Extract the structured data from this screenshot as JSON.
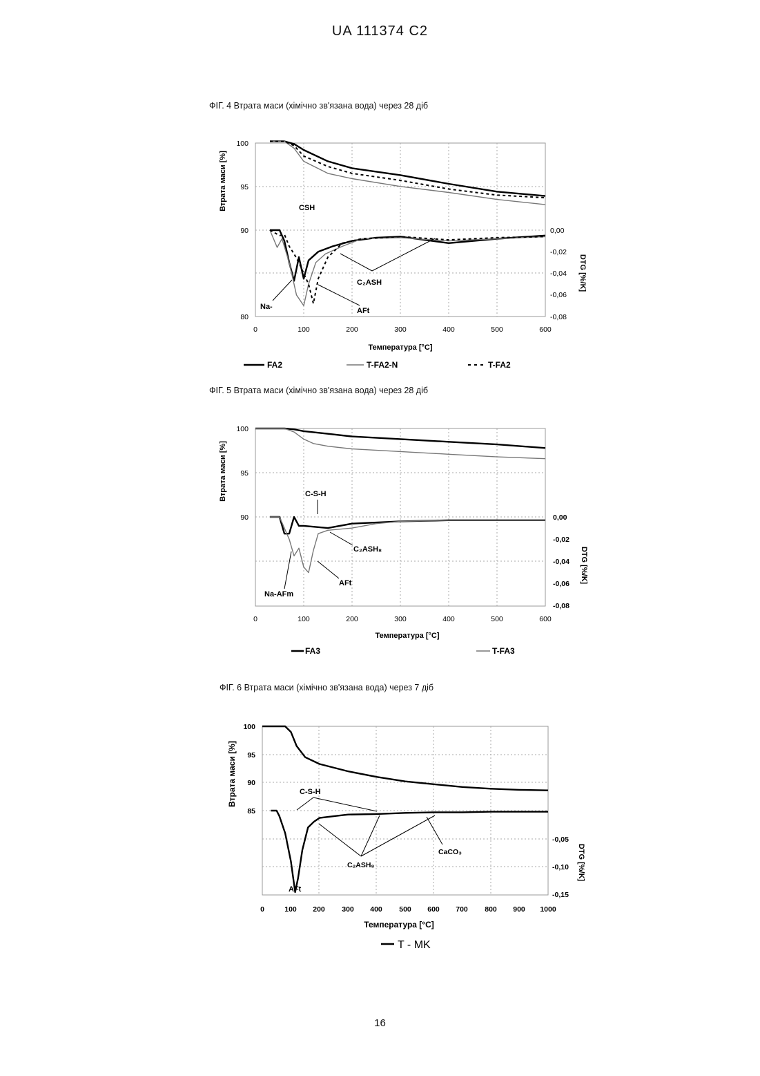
{
  "header": "UA 111374 C2",
  "page_number": "16",
  "figures": [
    {
      "caption": "ФІГ. 4 Втрата маси (хімічно зв'язана вода) через 28 діб",
      "ylabel_left": "Втрата маси [%]",
      "ylabel_right": "DTG [%/K]",
      "xlabel": "Температура [°C]",
      "annotations": [
        "CSH",
        "C₂ASH",
        "Na-",
        "AFt"
      ],
      "legend": [
        "FA2",
        "T-FA2-N",
        "T-FA2"
      ]
    },
    {
      "caption": "ФІГ. 5 Втрата маси (хімічно зв'язана вода) через 28 діб",
      "ylabel_left": "Втрата маси [%]",
      "ylabel_right": "DTG [%/K]",
      "xlabel": "Температура [°C]",
      "annotations": [
        "C-S-H",
        "C₂ASH₈",
        "AFt",
        "Na-AFm"
      ],
      "legend": [
        "FA3",
        "T-FA3"
      ]
    },
    {
      "caption": "ФІГ. 6 Втрата маси (хімічно зв'язана вода) через 7 діб",
      "ylabel_left": "Втрата маси [%]",
      "ylabel_right": "DTG [%/K]",
      "xlabel": "Температура [°C]",
      "annotations": [
        "C-S-H",
        "CaCO₃",
        "C₂ASH₈",
        "AFt"
      ],
      "legend": [
        "T - MK"
      ]
    }
  ],
  "chart_data": [
    {
      "type": "line",
      "x_ticks": [
        "0",
        "100",
        "200",
        "300",
        "400",
        "500",
        "600"
      ],
      "y_left_ticks": [
        "100",
        "95",
        "90",
        "80"
      ],
      "y_right_ticks": [
        "0,00",
        "-0,02",
        "-0,04",
        "-0,06",
        "-0,08"
      ],
      "xlim": [
        0,
        600
      ],
      "ylim_left": [
        80,
        100
      ],
      "ylim_right": [
        -0.08,
        0.0
      ],
      "series": [
        {
          "name": "FA2",
          "axis": "left",
          "style": "solid-thick",
          "x": [
            30,
            60,
            80,
            100,
            150,
            200,
            300,
            400,
            500,
            600
          ],
          "y": [
            100.2,
            100.2,
            99.9,
            99.2,
            97.9,
            97.1,
            96.3,
            95.3,
            94.4,
            93.9
          ]
        },
        {
          "name": "T-FA2-N",
          "axis": "left",
          "style": "solid-thin",
          "x": [
            30,
            60,
            80,
            100,
            150,
            200,
            300,
            400,
            500,
            600
          ],
          "y": [
            100.2,
            100.2,
            99.4,
            97.9,
            96.5,
            95.9,
            95.0,
            94.3,
            93.5,
            92.9
          ]
        },
        {
          "name": "T-FA2",
          "axis": "left",
          "style": "dashed",
          "x": [
            30,
            60,
            80,
            100,
            150,
            200,
            300,
            400,
            500,
            600
          ],
          "y": [
            100.2,
            100.2,
            99.7,
            98.5,
            97.3,
            96.5,
            95.7,
            94.7,
            94.0,
            93.7
          ]
        },
        {
          "name": "FA2",
          "axis": "right",
          "style": "solid-thick",
          "x": [
            30,
            50,
            60,
            70,
            80,
            90,
            100,
            110,
            130,
            160,
            200,
            250,
            300,
            400,
            500,
            600
          ],
          "y": [
            0.0,
            0.0,
            -0.01,
            -0.03,
            -0.047,
            -0.025,
            -0.045,
            -0.028,
            -0.02,
            -0.015,
            -0.01,
            -0.007,
            -0.006,
            -0.012,
            -0.008,
            -0.005
          ]
        },
        {
          "name": "T-FA2-N",
          "axis": "right",
          "style": "solid-thin",
          "x": [
            30,
            45,
            55,
            70,
            85,
            100,
            110,
            125,
            145,
            180,
            220,
            300,
            400,
            500,
            600
          ],
          "y": [
            0.0,
            -0.016,
            -0.008,
            -0.03,
            -0.06,
            -0.07,
            -0.05,
            -0.03,
            -0.022,
            -0.015,
            -0.008,
            -0.007,
            -0.01,
            -0.008,
            -0.006
          ]
        },
        {
          "name": "T-FA2",
          "axis": "right",
          "style": "dashed",
          "x": [
            30,
            50,
            60,
            70,
            80,
            90,
            100,
            110,
            120,
            130,
            150,
            180,
            220,
            300,
            400,
            500,
            600
          ],
          "y": [
            0.0,
            -0.005,
            -0.004,
            -0.015,
            -0.022,
            -0.03,
            -0.04,
            -0.05,
            -0.068,
            -0.045,
            -0.025,
            -0.012,
            -0.008,
            -0.006,
            -0.009,
            -0.007,
            -0.006
          ]
        }
      ]
    },
    {
      "type": "line",
      "x_ticks": [
        "0",
        "100",
        "200",
        "300",
        "400",
        "500",
        "600"
      ],
      "y_left_ticks": [
        "100",
        "95",
        "90"
      ],
      "y_right_ticks": [
        "0,00",
        "-0,02",
        "-0,04",
        "-0,06",
        "-0,08"
      ],
      "xlim": [
        0,
        600
      ],
      "ylim_left": [
        80,
        100
      ],
      "ylim_right": [
        -0.08,
        0.0
      ],
      "series": [
        {
          "name": "FA3",
          "axis": "left",
          "style": "solid-thick",
          "x": [
            0,
            60,
            80,
            100,
            150,
            200,
            300,
            400,
            500,
            600
          ],
          "y": [
            100,
            100,
            99.9,
            99.7,
            99.4,
            99.1,
            98.8,
            98.5,
            98.2,
            97.8
          ]
        },
        {
          "name": "T-FA3",
          "axis": "left",
          "style": "solid-thin",
          "x": [
            0,
            60,
            80,
            100,
            120,
            150,
            200,
            300,
            400,
            500,
            600
          ],
          "y": [
            100,
            100,
            99.6,
            98.8,
            98.3,
            98.0,
            97.7,
            97.4,
            97.1,
            96.8,
            96.6
          ]
        },
        {
          "name": "FA3",
          "axis": "right",
          "style": "solid-thick",
          "x": [
            30,
            50,
            60,
            70,
            80,
            90,
            100,
            150,
            200,
            300,
            400,
            500,
            600
          ],
          "y": [
            0.0,
            0.0,
            -0.015,
            -0.015,
            0.0,
            -0.008,
            -0.008,
            -0.01,
            -0.006,
            -0.004,
            -0.003,
            -0.003,
            -0.003
          ]
        },
        {
          "name": "T-FA3",
          "axis": "right",
          "style": "solid-thin",
          "x": [
            30,
            50,
            70,
            80,
            90,
            100,
            110,
            120,
            130,
            150,
            200,
            250,
            300,
            400,
            500,
            600
          ],
          "y": [
            0.0,
            0.0,
            -0.02,
            -0.035,
            -0.028,
            -0.045,
            -0.05,
            -0.03,
            -0.015,
            -0.012,
            -0.01,
            -0.006,
            -0.004,
            -0.003,
            -0.003,
            -0.003
          ]
        }
      ]
    },
    {
      "type": "line",
      "x_ticks": [
        "0",
        "100",
        "200",
        "300",
        "400",
        "500",
        "600",
        "700",
        "800",
        "900",
        "1000"
      ],
      "y_left_ticks": [
        "100",
        "95",
        "90",
        "85"
      ],
      "y_right_ticks": [
        "-0,05",
        "-0,10",
        "-0,15"
      ],
      "xlim": [
        0,
        1000
      ],
      "ylim_left": [
        70,
        100
      ],
      "ylim_right": [
        -0.15,
        0.0
      ],
      "series": [
        {
          "name": "T - MK",
          "axis": "left",
          "style": "solid-thick",
          "x": [
            0,
            80,
            100,
            120,
            150,
            200,
            300,
            400,
            500,
            600,
            700,
            800,
            900,
            1000
          ],
          "y": [
            100,
            100,
            99,
            96.5,
            94.5,
            93.3,
            92.0,
            91.0,
            90.2,
            89.7,
            89.2,
            88.9,
            88.7,
            88.6
          ]
        },
        {
          "name": "T - MK",
          "axis": "right",
          "style": "solid-thick",
          "x": [
            30,
            50,
            60,
            80,
            100,
            115,
            125,
            140,
            160,
            180,
            200,
            250,
            300,
            400,
            500,
            600,
            700,
            800,
            900,
            1000
          ],
          "y": [
            0.0,
            0.0,
            -0.01,
            -0.04,
            -0.09,
            -0.145,
            -0.12,
            -0.07,
            -0.03,
            -0.02,
            -0.013,
            -0.01,
            -0.007,
            -0.006,
            -0.004,
            -0.003,
            -0.003,
            -0.002,
            -0.002,
            -0.002
          ]
        }
      ]
    }
  ]
}
